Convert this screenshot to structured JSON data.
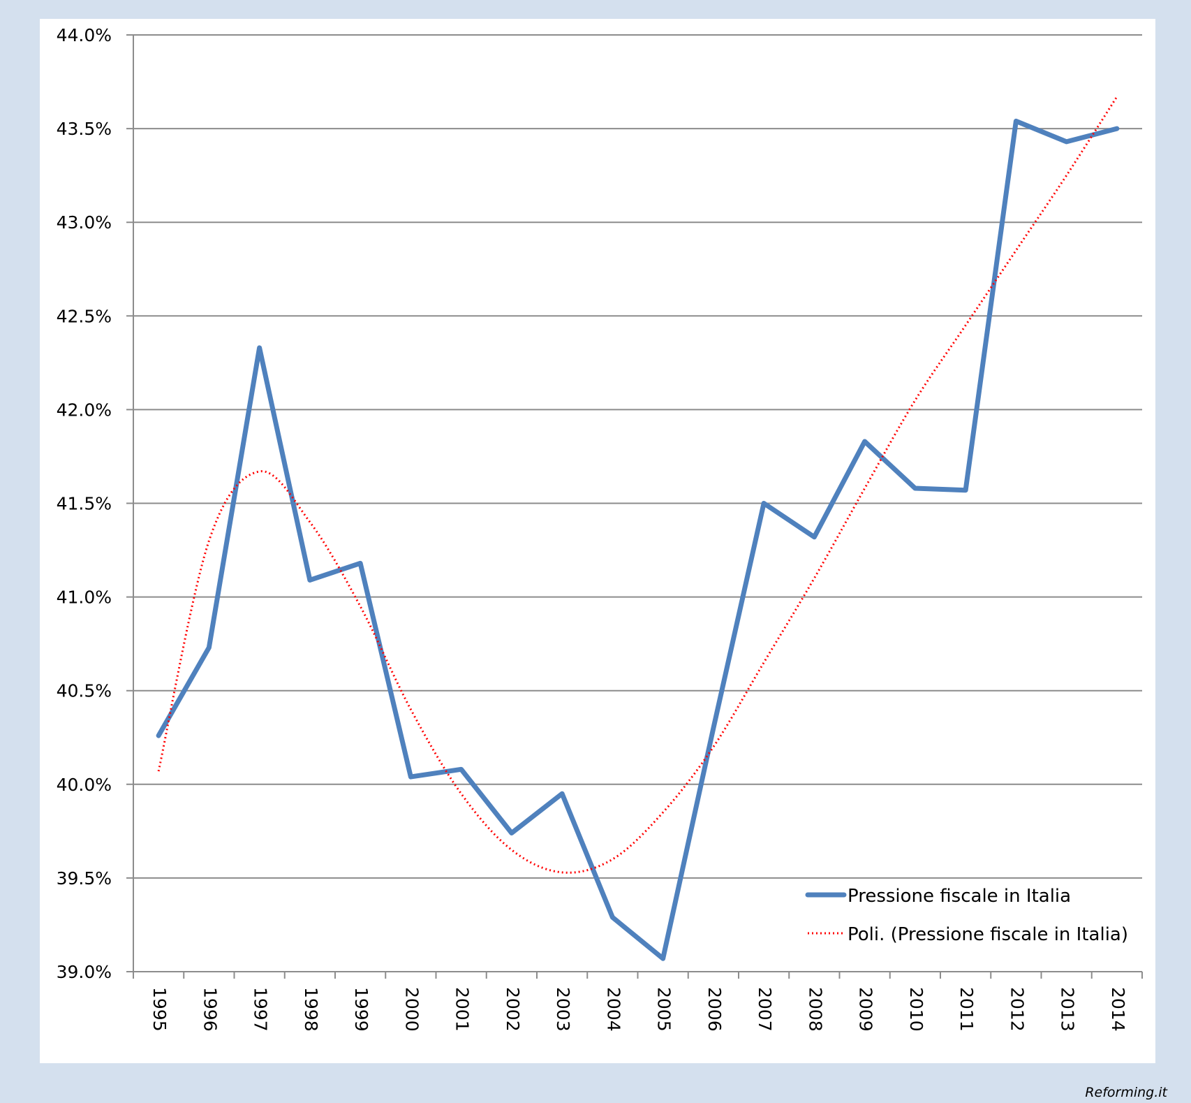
{
  "chart_data": {
    "type": "line",
    "title": "",
    "xlabel": "",
    "ylabel": "",
    "ylim": [
      39.0,
      44.0
    ],
    "y_ticks": [
      "39.0%",
      "39.5%",
      "40.0%",
      "40.5%",
      "41.0%",
      "41.5%",
      "42.0%",
      "42.5%",
      "43.0%",
      "43.5%",
      "44.0%"
    ],
    "y_tick_values": [
      39.0,
      39.5,
      40.0,
      40.5,
      41.0,
      41.5,
      42.0,
      42.5,
      43.0,
      43.5,
      44.0
    ],
    "categories": [
      "1995",
      "1996",
      "1997",
      "1998",
      "1999",
      "2000",
      "2001",
      "2002",
      "2003",
      "2004",
      "2005",
      "2006",
      "2007",
      "2008",
      "2009",
      "2010",
      "2011",
      "2012",
      "2013",
      "2014"
    ],
    "grid": true,
    "legend_position": "bottom-right",
    "series": [
      {
        "name": "Pressione fiscale  in Italia",
        "color": "#4f81bd",
        "style": "solid",
        "values": [
          40.26,
          40.73,
          42.33,
          41.09,
          41.18,
          40.04,
          40.08,
          39.74,
          39.95,
          39.29,
          39.07,
          40.3,
          41.5,
          41.32,
          41.83,
          41.58,
          41.57,
          43.54,
          43.43,
          43.5
        ]
      },
      {
        "name": "Poli. (Pressione fiscale  in Italia)",
        "color": "#ff0000",
        "style": "dotted",
        "values": [
          40.07,
          41.3,
          41.67,
          41.4,
          40.95,
          40.4,
          39.95,
          39.65,
          39.53,
          39.6,
          39.85,
          40.2,
          40.65,
          41.1,
          41.58,
          42.05,
          42.45,
          42.85,
          43.25,
          43.67
        ]
      }
    ]
  },
  "credit": "Reforming.it"
}
